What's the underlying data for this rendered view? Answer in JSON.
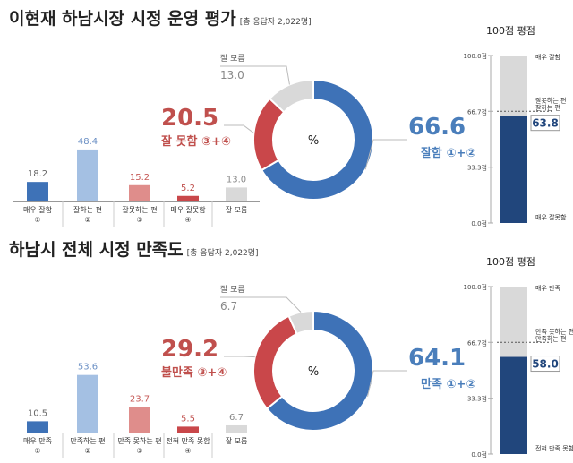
{
  "colors": {
    "blue_dark": "#3e72b7",
    "blue_light": "#a4c0e3",
    "red_dark": "#c9474a",
    "red_light": "#df8d8b",
    "gray": "#d9d9d9",
    "score_fill": "#21467c",
    "score_track": "#d9d9d9",
    "good_text": "#4a7ebb",
    "bad_text": "#c0504d"
  },
  "chart_data": [
    {
      "type": "bar",
      "title": "이현재 하남시장 시정 운영 평가",
      "subtitle": "[총 응답자 2,022명]",
      "categories": [
        [
          "매우 잘함",
          "①"
        ],
        [
          "잘하는 편",
          "②"
        ],
        [
          "잘못하는 편",
          "③"
        ],
        [
          "매우 잘못함",
          "④"
        ],
        [
          "잘 모름"
        ]
      ],
      "values": [
        18.2,
        48.4,
        15.2,
        5.2,
        13.0
      ],
      "value_labels": [
        "18.2",
        "48.4",
        "15.2",
        "5.2",
        "13.0"
      ],
      "donut": {
        "center_label": "%",
        "slices": [
          {
            "label": "잘함 ①+②",
            "value": 66.6,
            "value_label": "66.6"
          },
          {
            "label": "잘 못함 ③+④",
            "value": 20.5,
            "value_label": "20.5"
          },
          {
            "label": "잘 모름",
            "value": 13.0,
            "value_label": "13.0"
          }
        ]
      },
      "score": {
        "title": "100점 평점",
        "value": 63.8,
        "value_label": "63.8",
        "ticks": [
          "100.0점",
          "66.7점",
          "33.3점",
          "0.0점"
        ],
        "scale_labels": [
          "매우 잘함",
          "잘하는 편",
          "잘못하는 편",
          "매우 잘못함"
        ]
      }
    },
    {
      "type": "bar",
      "title": "하남시 전체 시정 만족도",
      "subtitle": "[총 응답자 2,022명]",
      "categories": [
        [
          "매우 만족",
          "①"
        ],
        [
          "만족하는 편",
          "②"
        ],
        [
          "만족 못하는 편",
          "③"
        ],
        [
          "전혀 만족 못함",
          "④"
        ],
        [
          "잘 모름"
        ]
      ],
      "values": [
        10.5,
        53.6,
        23.7,
        5.5,
        6.7
      ],
      "value_labels": [
        "10.5",
        "53.6",
        "23.7",
        "5.5",
        "6.7"
      ],
      "donut": {
        "center_label": "%",
        "slices": [
          {
            "label": "만족 ①+②",
            "value": 64.1,
            "value_label": "64.1"
          },
          {
            "label": "불만족 ③+④",
            "value": 29.2,
            "value_label": "29.2"
          },
          {
            "label": "잘 모름",
            "value": 6.7,
            "value_label": "6.7"
          }
        ]
      },
      "score": {
        "title": "100점 평점",
        "value": 58.0,
        "value_label": "58.0",
        "ticks": [
          "100.0점",
          "66.7점",
          "33.3점",
          "0.0점"
        ],
        "scale_labels": [
          "매우 만족",
          "만족하는 편",
          "만족 못하는 편",
          "전혀 만족 못함"
        ]
      }
    }
  ]
}
